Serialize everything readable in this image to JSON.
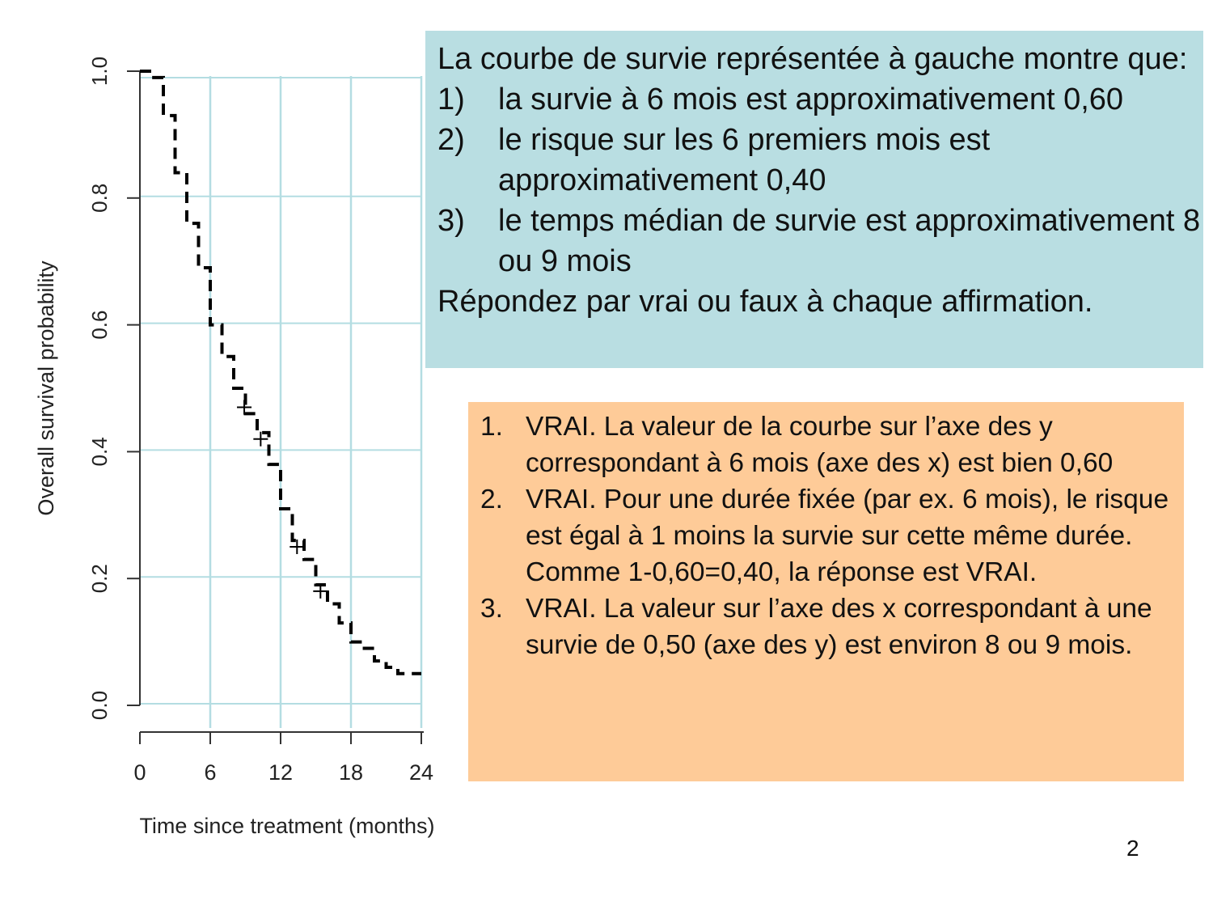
{
  "question": {
    "intro": "La courbe de survie représentée à gauche montre que:",
    "items": [
      {
        "num": "1)",
        "text": "la survie à 6 mois est approximativement 0,60"
      },
      {
        "num": "2)",
        "text": "le risque sur les 6 premiers mois est approximativement 0,40"
      },
      {
        "num": "3)",
        "text": "le temps médian de survie est approximativement 8 ou 9 mois"
      }
    ],
    "outro": "Répondez par vrai ou faux à chaque affirmation.",
    "background": "#b9dee2"
  },
  "answers": {
    "items": [
      {
        "num": "1.",
        "text": "VRAI. La valeur de la courbe sur l’axe des y correspondant à 6 mois (axe des x) est bien 0,60"
      },
      {
        "num": "2.",
        "text": "VRAI. Pour une durée fixée (par ex. 6 mois), le risque est égal à 1 moins la survie sur cette même durée. Comme 1-0,60=0,40, la réponse est VRAI."
      },
      {
        "num": "3.",
        "text": "VRAI. La valeur sur l’axe des x correspondant à une survie de 0,50 (axe des y) est environ 8 ou 9 mois."
      }
    ],
    "background": "#fecb98"
  },
  "page_number": "2",
  "chart_data": {
    "type": "line",
    "subtype": "kaplan-meier step curve, dashed",
    "xlabel": "Time since treatment (months)",
    "ylabel": "Overall survival probability",
    "xlim": [
      0,
      24
    ],
    "ylim": [
      0,
      1
    ],
    "xticks": [
      "0",
      "6",
      "12",
      "18",
      "24"
    ],
    "yticks": [
      "0.0",
      "0.2",
      "0.4",
      "0.6",
      "0.8",
      "1.0"
    ],
    "grid": true,
    "grid_color": "#b4dde2",
    "series": [
      {
        "x": [
          0,
          1,
          2,
          3,
          4,
          5,
          6,
          7,
          8,
          9,
          10,
          11,
          12,
          13,
          14,
          15,
          16,
          17,
          18,
          19,
          20,
          21,
          22,
          24
        ],
        "y": [
          1.0,
          0.99,
          0.93,
          0.84,
          0.76,
          0.69,
          0.6,
          0.55,
          0.5,
          0.46,
          0.43,
          0.38,
          0.31,
          0.26,
          0.23,
          0.19,
          0.16,
          0.13,
          0.1,
          0.09,
          0.07,
          0.06,
          0.05,
          0.05
        ],
        "color": "#000000"
      }
    ],
    "censored": [
      {
        "x": 8.9,
        "y": 0.47
      },
      {
        "x": 10.3,
        "y": 0.42
      },
      {
        "x": 13.4,
        "y": 0.25
      },
      {
        "x": 15.4,
        "y": 0.18
      }
    ]
  }
}
